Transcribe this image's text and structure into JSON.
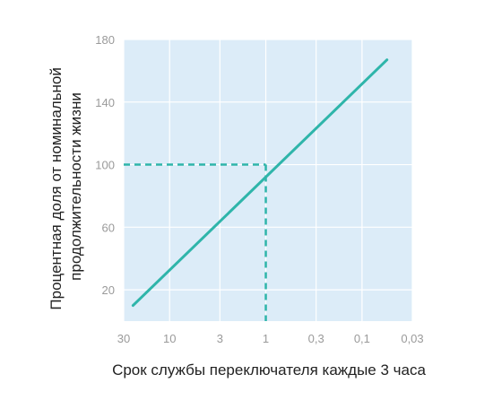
{
  "chart_data": {
    "type": "line",
    "x_scale": "log-reversed",
    "xlabel": "Срок службы переключателя каждые 3 часа",
    "ylabel_lines": [
      "Процентная доля от номинальной",
      "продолжительности жизни"
    ],
    "x_ticks": [
      {
        "value": 30,
        "label": "30"
      },
      {
        "value": 10,
        "label": "10"
      },
      {
        "value": 3,
        "label": "3"
      },
      {
        "value": 1,
        "label": "1"
      },
      {
        "value": 0.3,
        "label": "0,3"
      },
      {
        "value": 0.1,
        "label": "0,1"
      },
      {
        "value": 0.03,
        "label": "0,03"
      }
    ],
    "y_ticks": [
      {
        "value": 180,
        "label": "180"
      },
      {
        "value": 140,
        "label": "140"
      },
      {
        "value": 100,
        "label": "100"
      },
      {
        "value": 60,
        "label": "60"
      },
      {
        "value": 20,
        "label": "20"
      }
    ],
    "xlim": [
      30,
      0.03
    ],
    "ylim": [
      0,
      180
    ],
    "grid": true,
    "series": [
      {
        "points": [
          [
            24,
            10
          ],
          [
            0.055,
            167
          ]
        ]
      }
    ],
    "reference": {
      "x": 1,
      "y": 100
    },
    "colors": {
      "plot_bg": "#dcecf8",
      "grid": "#ffffff",
      "line": "#2fb5aa",
      "tick": "#9a9a9a",
      "title": "#222222"
    }
  }
}
